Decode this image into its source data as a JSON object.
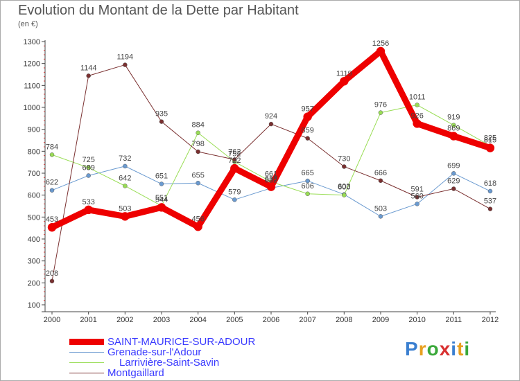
{
  "title": "Evolution du Montant de la Dette par Habitant",
  "subtitle": "(en €)",
  "logo": {
    "letters": [
      "P",
      "r",
      "o",
      "x",
      "i",
      "t",
      "i"
    ],
    "colors": [
      "#3a7fd0",
      "#e8a020",
      "#3aa83a",
      "#d83030",
      "#3a7fd0",
      "#e8a020",
      "#3aa83a"
    ]
  },
  "chart_data": {
    "type": "line",
    "x": [
      "2000",
      "2001",
      "2002",
      "2003",
      "2004",
      "2005",
      "2006",
      "2007",
      "2008",
      "2009",
      "2010",
      "2011",
      "2012"
    ],
    "ylim": [
      100,
      1300
    ],
    "yticks": [
      100,
      200,
      300,
      400,
      500,
      600,
      700,
      800,
      900,
      1000,
      1100,
      1200,
      1300
    ],
    "grid": false,
    "legend_position": "bottom-left",
    "series": [
      {
        "name": "SAINT-MAURICE-SUR-ADOUR",
        "color": "#ee0000",
        "width": 9,
        "values": [
          453,
          533,
          503,
          544,
          456,
          722,
          638,
          957,
          1119,
          1256,
          926,
          869,
          815
        ],
        "labels": [
          "453",
          "533",
          "503",
          "544",
          "456",
          "722",
          "638",
          "957",
          "1119",
          "1256",
          "926",
          "869",
          "815"
        ]
      },
      {
        "name": "Grenade-sur-l'Adour",
        "color": "#6a9ad0",
        "width": 1,
        "values": [
          622,
          689,
          732,
          651,
          655,
          579,
          632,
          665,
          603,
          503,
          560,
          699,
          618
        ],
        "labels": [
          "622",
          "689",
          "732",
          "651",
          "655",
          "579",
          "632",
          "665",
          "603",
          "503",
          "560",
          "699",
          "618"
        ]
      },
      {
        "name": "Larrivière-Saint-Savin",
        "color": "#99dd55",
        "width": 1,
        "values": [
          784,
          725,
          642,
          551,
          884,
          752,
          661,
          606,
          600,
          976,
          1011,
          919,
          825
        ],
        "labels": [
          "784",
          "725",
          "642",
          "551",
          "884",
          "752",
          "661",
          "606",
          "600",
          "976",
          "1011",
          "919",
          "825"
        ]
      },
      {
        "name": "Montgaillard",
        "color": "#7a3030",
        "width": 1,
        "values": [
          208,
          1144,
          1194,
          935,
          798,
          762,
          924,
          859,
          730,
          666,
          591,
          629,
          537
        ],
        "labels": [
          "208",
          "1144",
          "1194",
          "935",
          "798",
          "762",
          "924",
          "859",
          "730",
          "666",
          "591",
          "629",
          "537"
        ]
      }
    ]
  }
}
